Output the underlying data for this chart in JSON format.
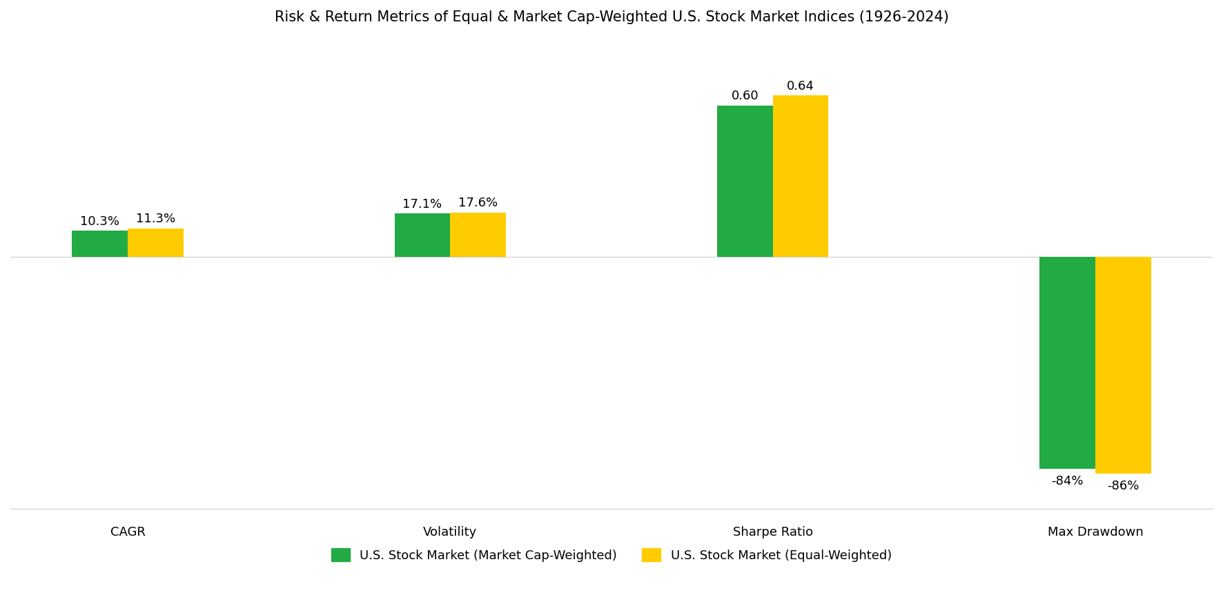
{
  "title": "Risk & Return Metrics of Equal & Market Cap-Weighted U.S. Stock Market Indices (1926-2024)",
  "categories": [
    "CAGR",
    "Volatility",
    "Sharpe Ratio",
    "Max Drawdown"
  ],
  "series": [
    {
      "label": "U.S. Stock Market (Market Cap-Weighted)",
      "color": "#22aa44",
      "display_values": [
        10.3,
        17.1,
        60.0,
        -84.0
      ]
    },
    {
      "label": "U.S. Stock Market (Equal-Weighted)",
      "color": "#ffcc00",
      "display_values": [
        11.3,
        17.6,
        64.0,
        -86.0
      ]
    }
  ],
  "value_labels": [
    [
      "10.3%",
      "11.3%"
    ],
    [
      "17.1%",
      "17.6%"
    ],
    [
      "0.60",
      "0.64"
    ],
    [
      "-84%",
      "-86%"
    ]
  ],
  "ylim": [
    -100,
    80
  ],
  "background_color": "#ffffff",
  "title_fontsize": 15,
  "label_fontsize": 13,
  "tick_fontsize": 13,
  "legend_fontsize": 13,
  "bar_width": 0.38,
  "x_positions": [
    0,
    2.2,
    4.4,
    6.6
  ],
  "xlim": [
    -0.8,
    7.4
  ]
}
